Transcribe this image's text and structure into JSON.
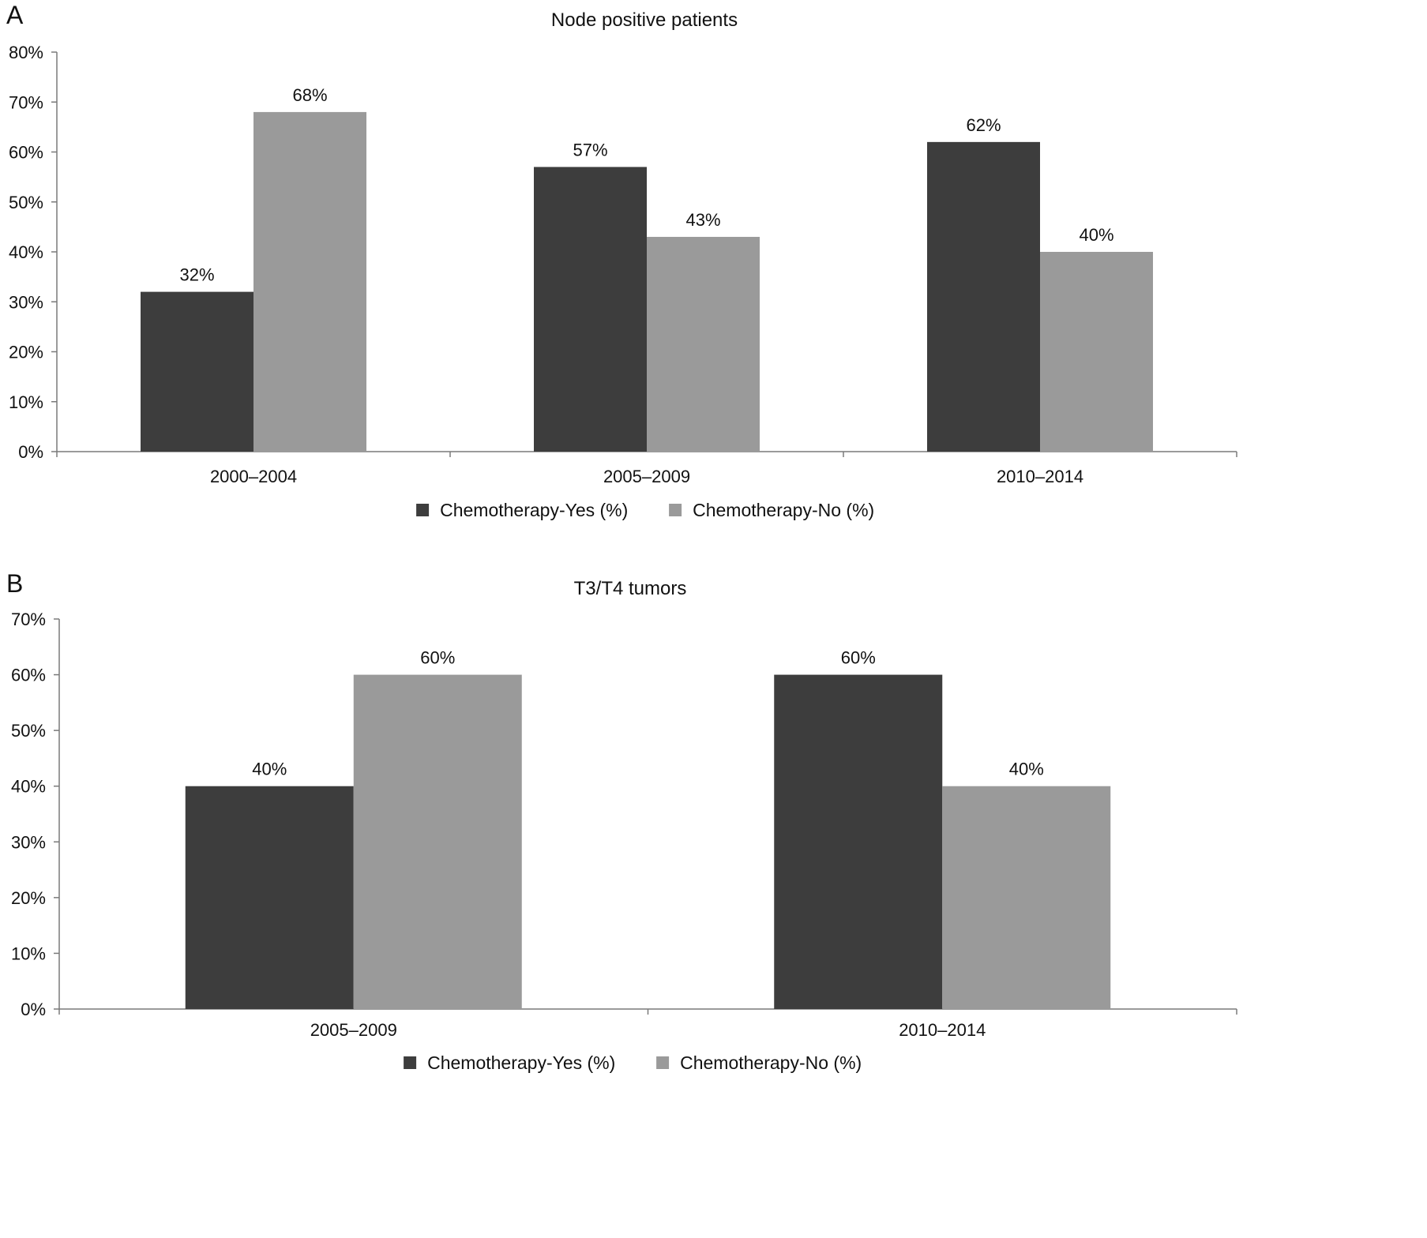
{
  "chart_data": [
    {
      "type": "bar",
      "panel": "A",
      "title": "Node positive patients",
      "categories": [
        "2000–2004",
        "2005–2009",
        "2010–2014"
      ],
      "series": [
        {
          "name": "Chemotherapy-Yes (%)",
          "values": [
            32,
            57,
            62
          ],
          "labels": [
            "32%",
            "57%",
            "62%"
          ],
          "color": "#3d3d3d"
        },
        {
          "name": "Chemotherapy-No (%)",
          "values": [
            68,
            43,
            40
          ],
          "labels": [
            "68%",
            "43%",
            "40%"
          ],
          "color": "#9a9a9a"
        }
      ],
      "ylim": [
        0,
        80
      ],
      "yticks": [
        "0%",
        "10%",
        "20%",
        "30%",
        "40%",
        "50%",
        "60%",
        "70%",
        "80%"
      ],
      "xlabel": "",
      "ylabel": "",
      "grid": false,
      "legend_position": "bottom"
    },
    {
      "type": "bar",
      "panel": "B",
      "title": "T3/T4 tumors",
      "categories": [
        "2005–2009",
        "2010–2014"
      ],
      "series": [
        {
          "name": "Chemotherapy-Yes (%)",
          "values": [
            40,
            60
          ],
          "labels": [
            "40%",
            "60%"
          ],
          "color": "#3d3d3d"
        },
        {
          "name": "Chemotherapy-No (%)",
          "values": [
            60,
            40
          ],
          "labels": [
            "60%",
            "40%"
          ],
          "color": "#9a9a9a"
        }
      ],
      "ylim": [
        0,
        70
      ],
      "yticks": [
        "0%",
        "10%",
        "20%",
        "30%",
        "40%",
        "50%",
        "60%",
        "70%"
      ],
      "xlabel": "",
      "ylabel": "",
      "grid": false,
      "legend_position": "bottom"
    }
  ]
}
